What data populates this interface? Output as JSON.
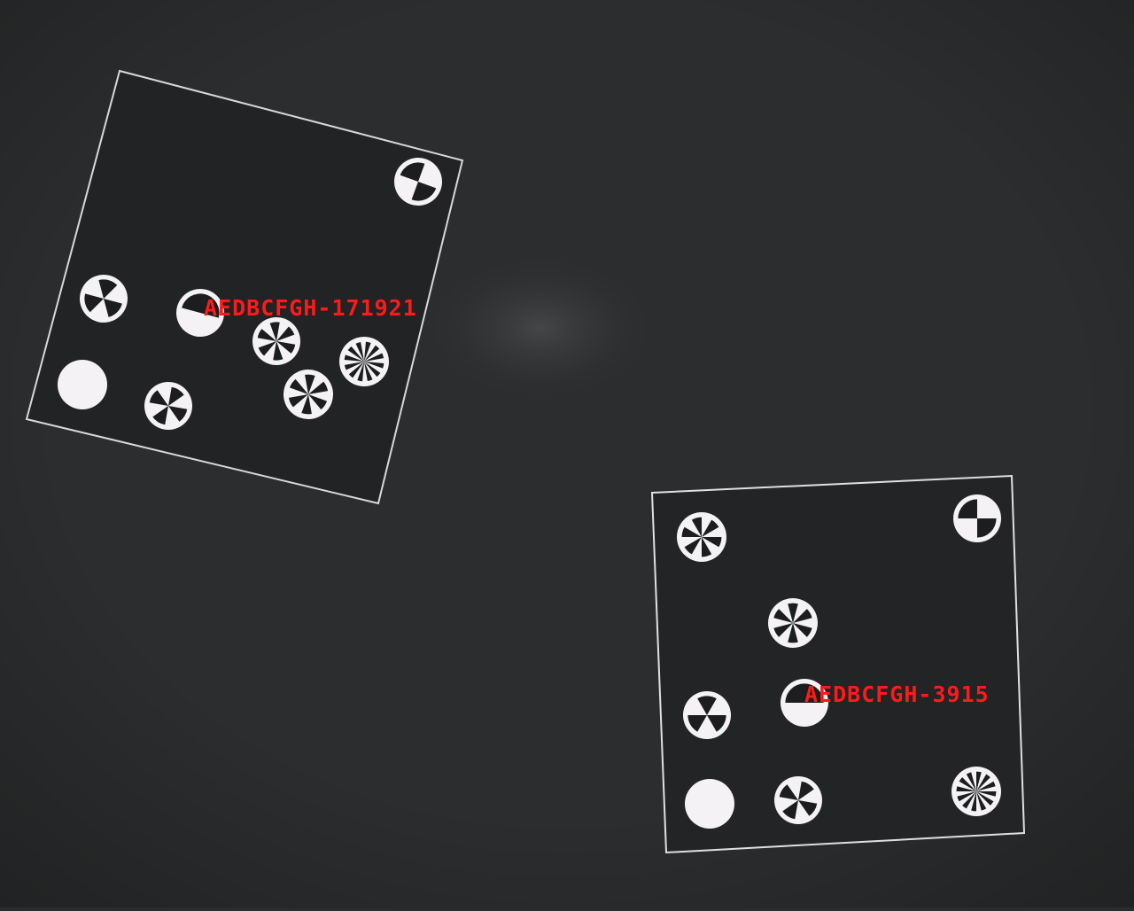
{
  "scene": {
    "description_tags": [
      "dark-background",
      "two-calibration-boards",
      "coded-circular-targets"
    ],
    "background_color": "#2b2c2d",
    "board_color": "#1f2021",
    "target_color": "#ffffff",
    "label_color": "#ff1a1a"
  },
  "labels": {
    "board_1": "AEDBCFGH-171921",
    "board_2": "AEDBCFGH-3915"
  },
  "target_types": [
    "solid-dot",
    "half-disc",
    "quadrant",
    "3-sector",
    "4-sector",
    "6-sector",
    "8-sector",
    "12-sector"
  ]
}
